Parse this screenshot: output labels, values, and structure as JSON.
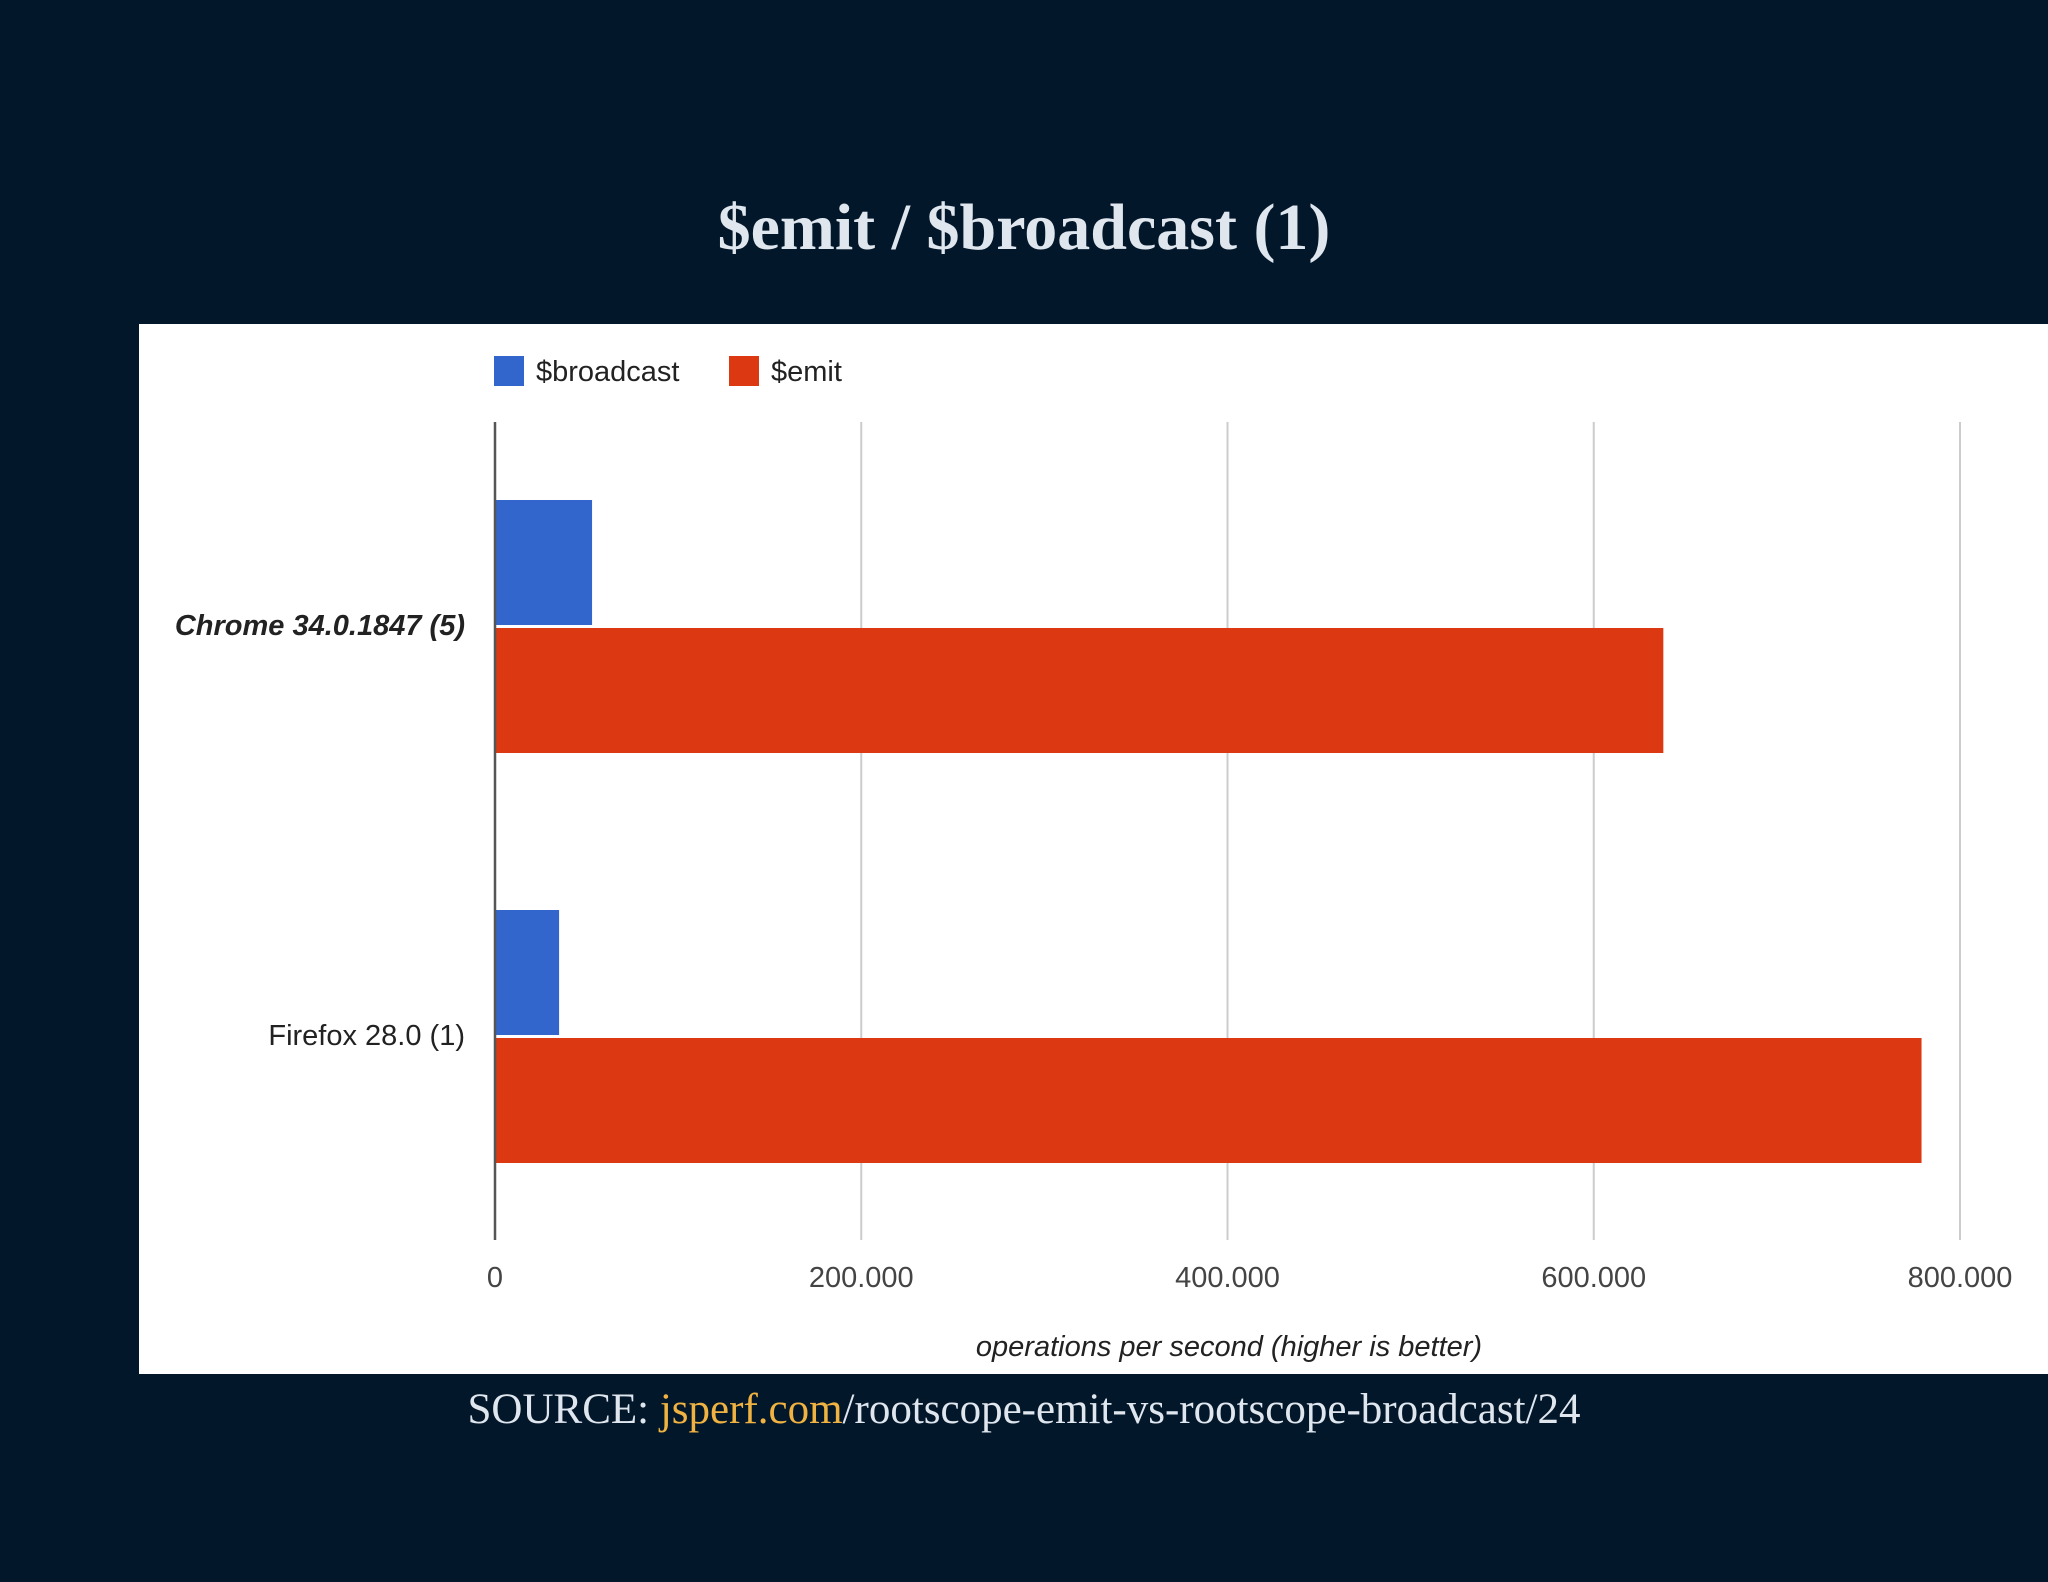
{
  "slide": {
    "title": "$emit / $broadcast (1)",
    "source_prefix": "SOURCE: ",
    "source_link": "jsperf.com",
    "source_rest": "/rootscope-emit-vs-rootscope-broadcast/24"
  },
  "colors": {
    "background": "#03172b",
    "broadcast": "#3366cc",
    "emit": "#dc3912",
    "link": "#f0b240"
  },
  "chart_data": {
    "type": "bar",
    "orientation": "horizontal",
    "title": "",
    "xlabel": "operations per second (higher is better)",
    "ylabel": "",
    "xlim": [
      0,
      800000
    ],
    "x_ticks": [
      0,
      200000,
      400000,
      600000,
      800000
    ],
    "x_tick_labels": [
      "0",
      "200.000",
      "400.000",
      "600.000",
      "800.000"
    ],
    "grid": true,
    "legend_position": "top",
    "categories": [
      "Chrome 34.0.1847 (5)",
      "Firefox 28.0 (1)"
    ],
    "category_bold_italic": [
      true,
      false
    ],
    "series": [
      {
        "name": "$broadcast",
        "color": "#3366cc",
        "values": [
          53000,
          35000
        ]
      },
      {
        "name": "$emit",
        "color": "#dc3912",
        "values": [
          638000,
          779000
        ]
      }
    ]
  }
}
